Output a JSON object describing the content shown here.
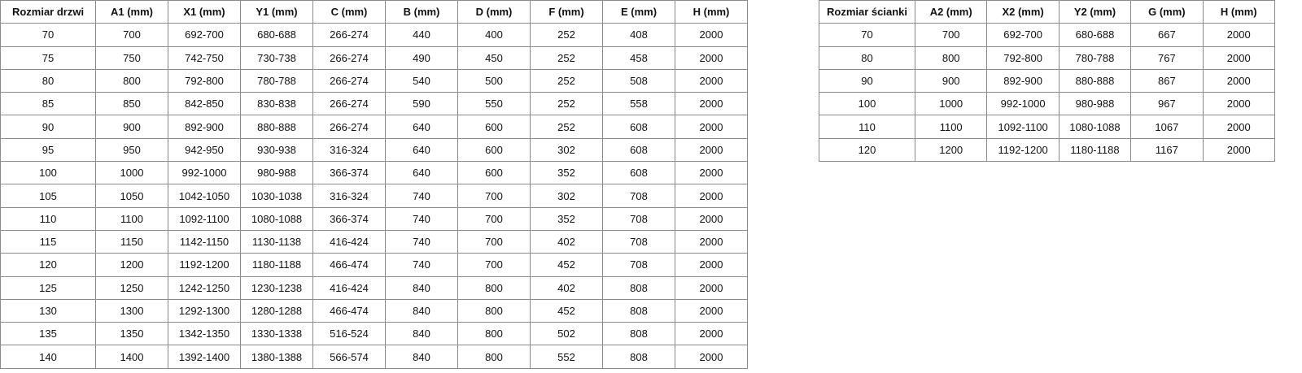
{
  "doors_table": {
    "headers": [
      "Rozmiar drzwi",
      "A1 (mm)",
      "X1 (mm)",
      "Y1 (mm)",
      "C (mm)",
      "B (mm)",
      "D (mm)",
      "F (mm)",
      "E (mm)",
      "H (mm)"
    ],
    "rows": [
      [
        "70",
        "700",
        "692-700",
        "680-688",
        "266-274",
        "440",
        "400",
        "252",
        "408",
        "2000"
      ],
      [
        "75",
        "750",
        "742-750",
        "730-738",
        "266-274",
        "490",
        "450",
        "252",
        "458",
        "2000"
      ],
      [
        "80",
        "800",
        "792-800",
        "780-788",
        "266-274",
        "540",
        "500",
        "252",
        "508",
        "2000"
      ],
      [
        "85",
        "850",
        "842-850",
        "830-838",
        "266-274",
        "590",
        "550",
        "252",
        "558",
        "2000"
      ],
      [
        "90",
        "900",
        "892-900",
        "880-888",
        "266-274",
        "640",
        "600",
        "252",
        "608",
        "2000"
      ],
      [
        "95",
        "950",
        "942-950",
        "930-938",
        "316-324",
        "640",
        "600",
        "302",
        "608",
        "2000"
      ],
      [
        "100",
        "1000",
        "992-1000",
        "980-988",
        "366-374",
        "640",
        "600",
        "352",
        "608",
        "2000"
      ],
      [
        "105",
        "1050",
        "1042-1050",
        "1030-1038",
        "316-324",
        "740",
        "700",
        "302",
        "708",
        "2000"
      ],
      [
        "110",
        "1100",
        "1092-1100",
        "1080-1088",
        "366-374",
        "740",
        "700",
        "352",
        "708",
        "2000"
      ],
      [
        "115",
        "1150",
        "1142-1150",
        "1130-1138",
        "416-424",
        "740",
        "700",
        "402",
        "708",
        "2000"
      ],
      [
        "120",
        "1200",
        "1192-1200",
        "1180-1188",
        "466-474",
        "740",
        "700",
        "452",
        "708",
        "2000"
      ],
      [
        "125",
        "1250",
        "1242-1250",
        "1230-1238",
        "416-424",
        "840",
        "800",
        "402",
        "808",
        "2000"
      ],
      [
        "130",
        "1300",
        "1292-1300",
        "1280-1288",
        "466-474",
        "840",
        "800",
        "452",
        "808",
        "2000"
      ],
      [
        "135",
        "1350",
        "1342-1350",
        "1330-1338",
        "516-524",
        "840",
        "800",
        "502",
        "808",
        "2000"
      ],
      [
        "140",
        "1400",
        "1392-1400",
        "1380-1388",
        "566-574",
        "840",
        "800",
        "552",
        "808",
        "2000"
      ]
    ]
  },
  "walls_table": {
    "headers": [
      "Rozmiar ścianki",
      "A2 (mm)",
      "X2 (mm)",
      "Y2 (mm)",
      "G (mm)",
      "H (mm)"
    ],
    "rows": [
      [
        "70",
        "700",
        "692-700",
        "680-688",
        "667",
        "2000"
      ],
      [
        "80",
        "800",
        "792-800",
        "780-788",
        "767",
        "2000"
      ],
      [
        "90",
        "900",
        "892-900",
        "880-888",
        "867",
        "2000"
      ],
      [
        "100",
        "1000",
        "992-1000",
        "980-988",
        "967",
        "2000"
      ],
      [
        "110",
        "1100",
        "1092-1100",
        "1080-1088",
        "1067",
        "2000"
      ],
      [
        "120",
        "1200",
        "1192-1200",
        "1180-1188",
        "1167",
        "2000"
      ]
    ]
  }
}
